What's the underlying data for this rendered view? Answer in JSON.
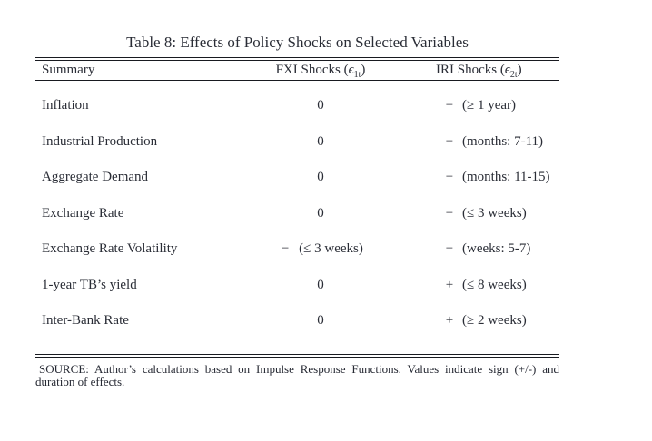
{
  "title": "Table 8: Effects of Policy Shocks on Selected Variables",
  "table": {
    "headers": {
      "summary": "Summary",
      "fxi": {
        "text": "FXI Shocks (",
        "epsilon": "ϵ",
        "sub": "1t",
        "close": ")"
      },
      "iri": {
        "text": "IRI Shocks (",
        "epsilon": "ϵ",
        "sub": "2t",
        "close": ")"
      }
    },
    "rows": [
      {
        "label": "Inflation",
        "fxi_sign": "",
        "fxi_value": "0",
        "iri_sign": "−",
        "iri_duration": "(≥ 1 year)"
      },
      {
        "label": "Industrial Production",
        "fxi_sign": "",
        "fxi_value": "0",
        "iri_sign": "−",
        "iri_duration": "(months: 7-11)"
      },
      {
        "label": "Aggregate Demand",
        "fxi_sign": "",
        "fxi_value": "0",
        "iri_sign": "−",
        "iri_duration": "(months: 11-15)"
      },
      {
        "label": "Exchange Rate",
        "fxi_sign": "",
        "fxi_value": "0",
        "iri_sign": "−",
        "iri_duration": "(≤ 3 weeks)"
      },
      {
        "label": "Exchange Rate Volatility",
        "fxi_sign": "−",
        "fxi_value": "(≤ 3 weeks)",
        "iri_sign": "−",
        "iri_duration": "(weeks: 5-7)"
      },
      {
        "label": "1-year TB’s yield",
        "fxi_sign": "",
        "fxi_value": "0",
        "iri_sign": "+",
        "iri_duration": "(≤ 8 weeks)"
      },
      {
        "label": "Inter-Bank Rate",
        "fxi_sign": "",
        "fxi_value": "0",
        "iri_sign": "+",
        "iri_duration": "(≥ 2 weeks)"
      }
    ]
  },
  "source_note": "SOURCE: Author’s calculations based on Impulse Response Functions. Values indicate sign (+/-) and duration of effects."
}
